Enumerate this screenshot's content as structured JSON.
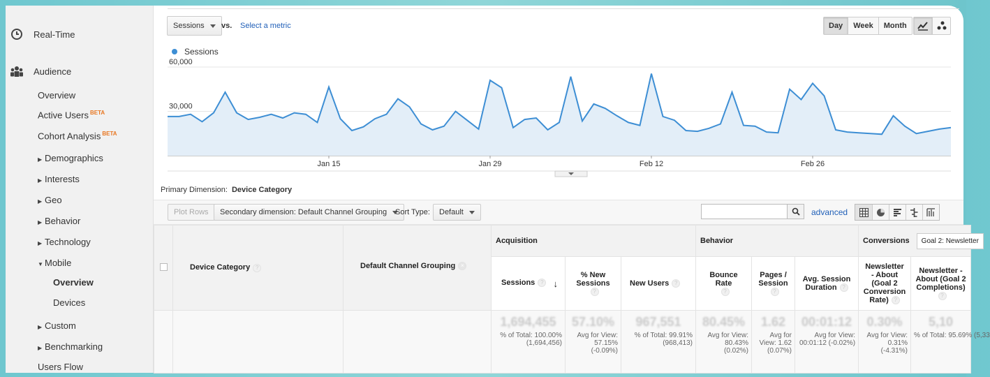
{
  "sidebar": {
    "realtime": "Real-Time",
    "audience": "Audience",
    "overview": "Overview",
    "active_users": "Active Users",
    "active_users_badge": "BETA",
    "cohort": "Cohort Analysis",
    "cohort_badge": "BETA",
    "demographics": "Demographics",
    "interests": "Interests",
    "geo": "Geo",
    "behavior": "Behavior",
    "technology": "Technology",
    "mobile": "Mobile",
    "mobile_overview": "Overview",
    "mobile_devices": "Devices",
    "custom": "Custom",
    "benchmarking": "Benchmarking",
    "users_flow": "Users Flow"
  },
  "controls": {
    "metric": "Sessions",
    "vs": "vs.",
    "select_metric": "Select a metric",
    "day": "Day",
    "week": "Week",
    "month": "Month",
    "selected_period": "Day"
  },
  "chart_data": {
    "type": "line",
    "series": [
      {
        "name": "Sessions",
        "color": "#3d8ed4",
        "values": [
          26500,
          26500,
          28000,
          23000,
          29000,
          43000,
          29000,
          24500,
          26000,
          28000,
          25500,
          29000,
          28000,
          22500,
          46500,
          25000,
          17000,
          19500,
          25000,
          28000,
          38500,
          33000,
          21500,
          17500,
          20000,
          30000,
          24000,
          18000,
          51000,
          46000,
          19000,
          24500,
          25500,
          17500,
          22500,
          53500,
          23500,
          35000,
          32000,
          27000,
          22500,
          20500,
          55500,
          26500,
          24000,
          17000,
          16500,
          18500,
          21500,
          43000,
          20500,
          20000,
          16000,
          15500,
          45000,
          38000,
          49000,
          40500,
          17500,
          16000,
          15500,
          15000,
          14500,
          27000,
          20000,
          15000,
          16500,
          18000,
          19000
        ]
      }
    ],
    "ymax": 60000,
    "y_ticks": [
      "60,000",
      "30,000"
    ],
    "y_tick_values": [
      60000,
      30000
    ],
    "x_labels": [
      {
        "label": "Jan 15",
        "index": 14
      },
      {
        "label": "Jan 29",
        "index": 28
      },
      {
        "label": "Feb 12",
        "index": 42
      },
      {
        "label": "Feb 26",
        "index": 56
      }
    ],
    "grid": true
  },
  "primary_dimension": {
    "label": "Primary Dimension:",
    "value": "Device Category"
  },
  "table_toolbar": {
    "plot_rows": "Plot Rows",
    "secondary": "Secondary dimension: Default Channel Grouping",
    "sort_label": "Sort Type:",
    "sort_value": "Default",
    "advanced": "advanced",
    "search_value": ""
  },
  "table": {
    "groups": {
      "acquisition": "Acquisition",
      "behavior": "Behavior",
      "conversions": "Conversions",
      "goal_select": "Goal 2: Newsletter"
    },
    "columns": {
      "device_category": "Device Category",
      "channel": "Default Channel Grouping",
      "sessions": "Sessions",
      "new_sessions": "% New Sessions",
      "new_users": "New Users",
      "bounce_rate": "Bounce Rate",
      "pages_session": "Pages / Session",
      "avg_duration": "Avg. Session Duration",
      "conv_rate": "Newsletter - About (Goal 2 Conversion Rate)",
      "completions": "Newsletter - About (Goal 2 Completions)"
    },
    "totals": {
      "sessions": "1,694,455",
      "sessions_sub": "% of Total: 100.00% (1,694,456)",
      "new_sessions": "57.10%",
      "new_sessions_sub": "Avg for View: 57.15% (-0.09%)",
      "new_users": "967,551",
      "new_users_sub": "% of Total: 99.91% (968,413)",
      "bounce_rate": "80.45%",
      "bounce_rate_sub": "Avg for View: 80.43% (0.02%)",
      "pages_session": "1.62",
      "pages_session_sub": "Avg for View: 1.62 (0.07%)",
      "avg_duration": "00:01:12",
      "avg_duration_sub": "Avg for View: 00:01:12 (-0.02%)",
      "conv_rate": "0.30%",
      "conv_rate_sub": "Avg for View: 0.31% (-4.31%)",
      "completions": "5,10",
      "completions_sub": "% of Total: 95.69% (5,33"
    }
  }
}
